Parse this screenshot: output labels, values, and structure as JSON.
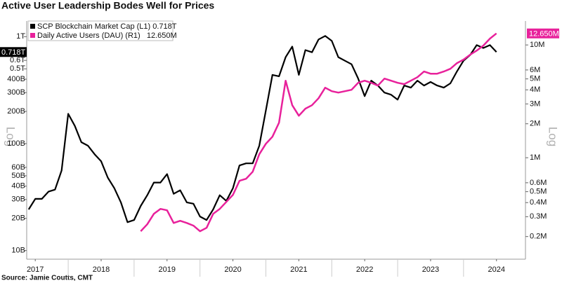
{
  "chart_data": {
    "type": "line",
    "title": "Active User Leadership Bodes Well for Prices",
    "source": "Source: Jamie Coutts, CMT",
    "y_label": "Log",
    "y2_label": "Log",
    "log_scale": true,
    "xlim": [
      2017.37,
      2024.94
    ],
    "xticks": [
      {
        "value": 2017.5,
        "label": "2017"
      },
      {
        "value": 2018.5,
        "label": "2018"
      },
      {
        "value": 2019.5,
        "label": "2019"
      },
      {
        "value": 2020.5,
        "label": "2020"
      },
      {
        "value": 2021.5,
        "label": "2021"
      },
      {
        "value": 2022.5,
        "label": "2022"
      },
      {
        "value": 2023.5,
        "label": "2023"
      },
      {
        "value": 2024.5,
        "label": "2024"
      }
    ],
    "ylim": [
      8.3,
      1400
    ],
    "yticks": [
      {
        "value": 10,
        "label": "10B"
      },
      {
        "value": 20,
        "label": "20B"
      },
      {
        "value": 30,
        "label": "30B"
      },
      {
        "value": 40,
        "label": "40B"
      },
      {
        "value": 50,
        "label": "50B"
      },
      {
        "value": 60,
        "label": "60B"
      },
      {
        "value": 100,
        "label": "100B"
      },
      {
        "value": 200,
        "label": "200B"
      },
      {
        "value": 300,
        "label": "300B"
      },
      {
        "value": 400,
        "label": "400B"
      },
      {
        "value": 500,
        "label": "0.5T"
      },
      {
        "value": 600,
        "label": "0.6T"
      },
      {
        "value": 1000,
        "label": "1T"
      }
    ],
    "y2lim": [
      0.126,
      16.3
    ],
    "y2ticks": [
      {
        "value": 0.2,
        "label": "0.2M"
      },
      {
        "value": 0.3,
        "label": "0.3M"
      },
      {
        "value": 0.4,
        "label": "0.4M"
      },
      {
        "value": 0.5,
        "label": "0.5M"
      },
      {
        "value": 0.6,
        "label": "0.6M"
      },
      {
        "value": 1,
        "label": "1M"
      },
      {
        "value": 2,
        "label": "2M"
      },
      {
        "value": 3,
        "label": "3M"
      },
      {
        "value": 4,
        "label": "4M"
      },
      {
        "value": 5,
        "label": "5M"
      },
      {
        "value": 6,
        "label": "6M"
      },
      {
        "value": 10,
        "label": "10M"
      }
    ],
    "series": [
      {
        "name": "SCP Blockchain Market Cap (L1) 0.718T",
        "last_label": "0.718T",
        "color": "#000000",
        "axis": "y",
        "x": [
          2017.4,
          2017.5,
          2017.6,
          2017.7,
          2017.8,
          2017.9,
          2018.0,
          2018.1,
          2018.2,
          2018.3,
          2018.4,
          2018.5,
          2018.6,
          2018.7,
          2018.8,
          2018.9,
          2019.0,
          2019.1,
          2019.2,
          2019.3,
          2019.4,
          2019.5,
          2019.6,
          2019.7,
          2019.8,
          2019.9,
          2020.0,
          2020.1,
          2020.2,
          2020.3,
          2020.4,
          2020.5,
          2020.6,
          2020.7,
          2020.8,
          2020.9,
          2021.0,
          2021.1,
          2021.2,
          2021.3,
          2021.4,
          2021.5,
          2021.6,
          2021.7,
          2021.8,
          2021.9,
          2022.0,
          2022.1,
          2022.2,
          2022.3,
          2022.4,
          2022.5,
          2022.6,
          2022.7,
          2022.8,
          2022.9,
          2023.0,
          2023.1,
          2023.2,
          2023.3,
          2023.4,
          2023.5,
          2023.6,
          2023.7,
          2023.8,
          2023.9,
          2024.0,
          2024.1,
          2024.2,
          2024.3,
          2024.4,
          2024.5
        ],
        "values": [
          24.2,
          30.4,
          30.4,
          35.5,
          37.1,
          56.0,
          189.7,
          146.5,
          103.0,
          95.5,
          79.6,
          68.3,
          48.1,
          38.3,
          28.2,
          18.4,
          19.3,
          26.1,
          32.9,
          43.2,
          43.2,
          51.9,
          33.9,
          36.6,
          28.2,
          27.4,
          20.8,
          19.3,
          24.2,
          32.9,
          29.1,
          38.3,
          62.4,
          65.3,
          65.3,
          95.5,
          204.8,
          438.7,
          425.6,
          642.7,
          807.2,
          438.7,
          748.2,
          714.5,
          941.9,
          1016,
          912.0,
          642.7,
          595.7,
          552.1,
          406.4,
          278.0,
          388.1,
          349.1,
          299.9,
          286.4,
          257.6,
          349.1,
          333.4,
          388.1,
          349.1,
          376.7,
          349.1,
          333.4,
          365.6,
          473.2,
          595.7,
          673.0,
          833.7,
          783.4,
          833.7,
          718
        ]
      },
      {
        "name": "Daily Active Users (DAU) (R1)   12.650M",
        "last_label": "12.650M",
        "color": "#e8219b",
        "axis": "y2",
        "x": [
          2019.1,
          2019.2,
          2019.3,
          2019.4,
          2019.5,
          2019.6,
          2019.7,
          2019.8,
          2019.9,
          2020.0,
          2020.1,
          2020.2,
          2020.3,
          2020.4,
          2020.5,
          2020.6,
          2020.7,
          2020.8,
          2020.9,
          2021.0,
          2021.1,
          2021.2,
          2021.3,
          2021.4,
          2021.5,
          2021.6,
          2021.7,
          2021.8,
          2021.9,
          2022.0,
          2022.1,
          2022.2,
          2022.3,
          2022.4,
          2022.5,
          2022.6,
          2022.7,
          2022.8,
          2022.9,
          2023.0,
          2023.1,
          2023.2,
          2023.3,
          2023.4,
          2023.5,
          2023.6,
          2023.7,
          2023.8,
          2023.9,
          2024.0,
          2024.1,
          2024.2,
          2024.3,
          2024.4,
          2024.5
        ],
        "values": [
          0.223,
          0.257,
          0.318,
          0.352,
          0.342,
          0.264,
          0.276,
          0.264,
          0.25,
          0.223,
          0.239,
          0.318,
          0.352,
          0.406,
          0.469,
          0.624,
          0.651,
          0.751,
          1.074,
          1.331,
          1.536,
          2.046,
          4.82,
          2.922,
          2.358,
          2.722,
          2.922,
          3.373,
          4.18,
          3.89,
          3.78,
          3.89,
          4.0,
          4.62,
          4.82,
          4.62,
          4.36,
          5.03,
          4.82,
          4.62,
          4.49,
          4.82,
          5.18,
          5.81,
          5.56,
          5.56,
          5.81,
          6.15,
          6.9,
          7.41,
          8.19,
          8.91,
          9.86,
          11.38,
          12.65
        ]
      }
    ]
  }
}
